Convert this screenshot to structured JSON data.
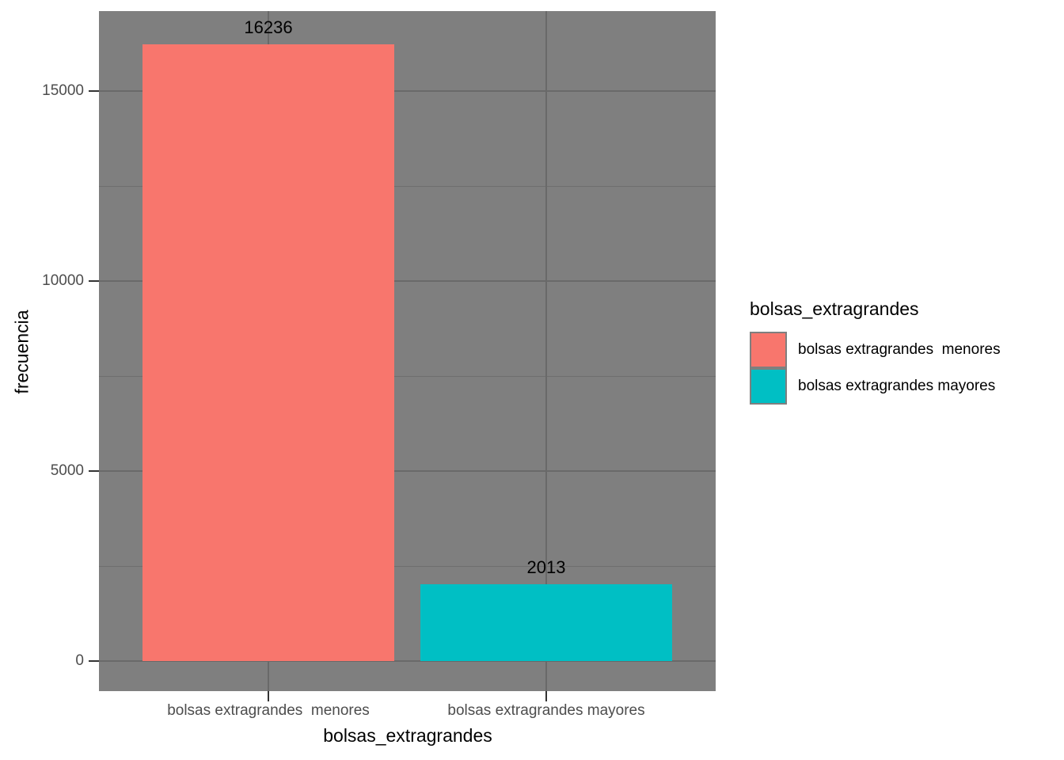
{
  "chart_data": {
    "type": "bar",
    "title": "",
    "xlabel": "bolsas_extragrandes",
    "ylabel": "frecuencia",
    "categories": [
      "bolsas extragrandes  menores",
      "bolsas extragrandes mayores"
    ],
    "values": [
      16236,
      2013
    ],
    "bar_value_labels": [
      "16236",
      "2013"
    ],
    "colors": [
      "#F8766D",
      "#00BFC4"
    ],
    "y_ticks": [
      0,
      5000,
      10000,
      15000
    ],
    "y_minor_ticks": [
      2500,
      7500,
      12500
    ],
    "ylim": [
      0,
      17050
    ],
    "grid": true,
    "panel_background": "#7F7F7F",
    "grid_major_color": "#696969",
    "grid_minor_color": "#6E6E6E",
    "tick_color": "#333333",
    "tick_label_color": "#4D4D4D",
    "legend": {
      "position": "right",
      "title": "bolsas_extragrandes",
      "entries": [
        {
          "label": "bolsas extragrandes  menores",
          "color": "#F8766D"
        },
        {
          "label": "bolsas extragrandes mayores",
          "color": "#00BFC4"
        }
      ]
    }
  }
}
